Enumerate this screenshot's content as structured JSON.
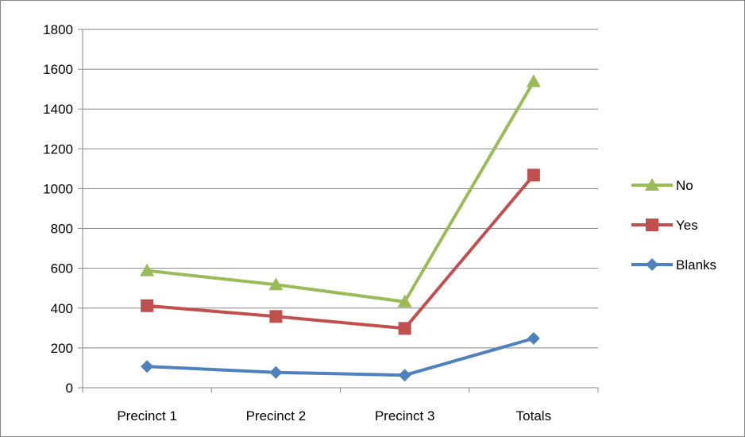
{
  "chart_data": {
    "type": "line",
    "categories": [
      "Precinct 1",
      "Precinct 2",
      "Precinct 3",
      "Totals"
    ],
    "series": [
      {
        "name": "No",
        "values": [
          588,
          518,
          432,
          1538
        ],
        "color": "#9BBB59",
        "marker": "triangle"
      },
      {
        "name": "Yes",
        "values": [
          412,
          358,
          298,
          1068
        ],
        "color": "#C0504D",
        "marker": "square"
      },
      {
        "name": "Blanks",
        "values": [
          107,
          77,
          63,
          248
        ],
        "color": "#4F81BD",
        "marker": "diamond"
      }
    ],
    "ylim": [
      0,
      1800
    ],
    "yticks": [
      0,
      200,
      400,
      600,
      800,
      1000,
      1200,
      1400,
      1600,
      1800
    ],
    "grid": true,
    "legend_position": "right"
  }
}
